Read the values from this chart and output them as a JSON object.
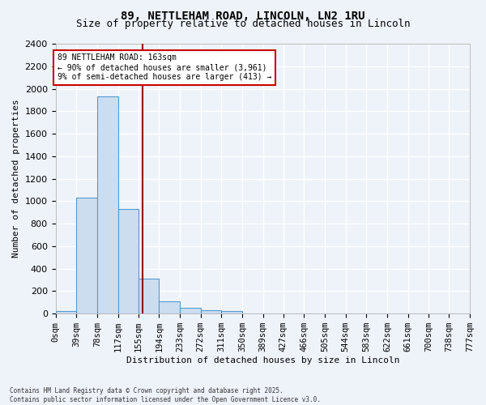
{
  "title": "89, NETTLEHAM ROAD, LINCOLN, LN2 1RU",
  "subtitle": "Size of property relative to detached houses in Lincoln",
  "xlabel": "Distribution of detached houses by size in Lincoln",
  "ylabel": "Number of detached properties",
  "footer_line1": "Contains HM Land Registry data © Crown copyright and database right 2025.",
  "footer_line2": "Contains public sector information licensed under the Open Government Licence v3.0.",
  "bin_edges": [
    0,
    39,
    78,
    117,
    155,
    194,
    233,
    272,
    311,
    350,
    389,
    427,
    466,
    505,
    544,
    583,
    622,
    661,
    700,
    738,
    777
  ],
  "bar_heights": [
    20,
    1030,
    1930,
    930,
    310,
    110,
    55,
    30,
    20,
    5,
    5,
    5,
    5,
    5,
    5,
    5,
    5,
    5,
    5,
    5
  ],
  "bar_color": "#ccddf0",
  "bar_edge_color": "#5599cc",
  "bg_color": "#eef3fa",
  "grid_color": "#ffffff",
  "red_line_x": 163,
  "annotation_text": "89 NETTLEHAM ROAD: 163sqm\n← 90% of detached houses are smaller (3,961)\n9% of semi-detached houses are larger (413) →",
  "annotation_box_color": "#ffffff",
  "annotation_box_edge": "#cc0000",
  "annotation_text_color": "#000000",
  "red_line_color": "#990000",
  "ylim": [
    0,
    2400
  ],
  "yticks": [
    0,
    200,
    400,
    600,
    800,
    1000,
    1200,
    1400,
    1600,
    1800,
    2000,
    2200,
    2400
  ],
  "xtick_labels": [
    "0sqm",
    "39sqm",
    "78sqm",
    "117sqm",
    "155sqm",
    "194sqm",
    "233sqm",
    "272sqm",
    "311sqm",
    "350sqm",
    "389sqm",
    "427sqm",
    "466sqm",
    "505sqm",
    "544sqm",
    "583sqm",
    "622sqm",
    "661sqm",
    "700sqm",
    "738sqm",
    "777sqm"
  ]
}
